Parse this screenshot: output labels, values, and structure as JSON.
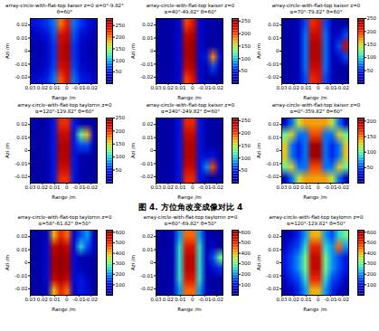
{
  "caption": "图 4. 方位角改变成像对比 4",
  "chart_data": [
    {
      "type": "heatmap",
      "title": "array-circle-with-flat-top kaiser z=0 α=0°-9.82° θ=60°",
      "x_label": "Range /m",
      "y_label": "Azi /m",
      "xlim": [
        0.03,
        -0.025
      ],
      "xticks": [
        0.03,
        0.02,
        0.01,
        0,
        -0.01,
        -0.02
      ],
      "ylim": [
        -0.025,
        0.025
      ],
      "yticks": [
        -0.02,
        -0.01,
        0,
        0.01,
        0.02
      ],
      "cells": [
        [
          40,
          50,
          60,
          80,
          200,
          230,
          80,
          60,
          40,
          30
        ],
        [
          20,
          30,
          40,
          70,
          240,
          250,
          70,
          40,
          30,
          20
        ],
        [
          15,
          20,
          30,
          60,
          250,
          260,
          60,
          30,
          20,
          15
        ],
        [
          15,
          20,
          30,
          60,
          250,
          260,
          60,
          30,
          20,
          15
        ],
        [
          20,
          25,
          35,
          65,
          240,
          250,
          65,
          35,
          25,
          20
        ],
        [
          30,
          40,
          50,
          80,
          210,
          240,
          80,
          50,
          40,
          30
        ]
      ],
      "colorbar": {
        "range": [
          0,
          280
        ],
        "ticks": [
          50,
          100,
          150,
          200,
          250
        ]
      }
    },
    {
      "type": "heatmap",
      "title": "array-circle-with-flat-top kaiser z=0 α=40°-49.82° θ=60°",
      "x_label": "Range /m",
      "y_label": "Azi /m",
      "xlim": [
        0.03,
        -0.025
      ],
      "xticks": [
        0.03,
        0.02,
        0.01,
        0,
        -0.01,
        -0.02
      ],
      "ylim": [
        -0.025,
        0.025
      ],
      "yticks": [
        -0.02,
        -0.01,
        0,
        0.01,
        0.02
      ],
      "cells": [
        [
          10,
          10,
          15,
          30,
          200,
          220,
          30,
          15,
          10,
          10
        ],
        [
          10,
          10,
          15,
          30,
          230,
          240,
          30,
          15,
          10,
          10
        ],
        [
          10,
          10,
          15,
          30,
          240,
          250,
          30,
          15,
          10,
          10
        ],
        [
          10,
          10,
          15,
          30,
          240,
          250,
          30,
          40,
          180,
          40
        ],
        [
          10,
          10,
          15,
          30,
          230,
          240,
          30,
          15,
          60,
          15
        ],
        [
          10,
          10,
          15,
          30,
          200,
          220,
          30,
          15,
          10,
          10
        ]
      ],
      "colorbar": {
        "range": [
          0,
          260
        ],
        "ticks": [
          50,
          100,
          150,
          200,
          250
        ]
      }
    },
    {
      "type": "heatmap",
      "title": "array-circle-with-flat-top kaiser z=0 α=70°-79.82° θ=60°",
      "x_label": "Range /m",
      "y_label": "Azi /m",
      "xlim": [
        0.03,
        -0.025
      ],
      "xticks": [
        0.03,
        0.02,
        0.01,
        0,
        -0.01,
        -0.02
      ],
      "ylim": [
        -0.025,
        0.025
      ],
      "yticks": [
        -0.02,
        -0.01,
        0,
        0.01,
        0.02
      ],
      "cells": [
        [
          10,
          10,
          20,
          60,
          200,
          210,
          60,
          20,
          10,
          10
        ],
        [
          10,
          10,
          20,
          70,
          220,
          220,
          70,
          20,
          30,
          60
        ],
        [
          10,
          10,
          20,
          70,
          230,
          230,
          70,
          20,
          60,
          220
        ],
        [
          10,
          10,
          20,
          70,
          230,
          230,
          70,
          20,
          30,
          60
        ],
        [
          10,
          10,
          20,
          70,
          220,
          220,
          70,
          20,
          10,
          10
        ],
        [
          10,
          10,
          20,
          60,
          200,
          210,
          60,
          20,
          10,
          10
        ]
      ],
      "colorbar": {
        "range": [
          0,
          250
        ],
        "ticks": [
          50,
          100,
          150,
          200,
          250
        ]
      }
    },
    {
      "type": "heatmap",
      "title": "array-circle-with-flat-top taylornn z=0 α=120°-129.82° θ=60°",
      "x_label": "Range /m",
      "y_label": "Azi /m",
      "xlim": [
        0.03,
        -0.025
      ],
      "xticks": [
        0.03,
        0.02,
        0.01,
        0,
        -0.01,
        -0.02
      ],
      "ylim": [
        -0.025,
        0.025
      ],
      "yticks": [
        -0.02,
        -0.01,
        0,
        0.01,
        0.02
      ],
      "cells": [
        [
          10,
          10,
          15,
          40,
          200,
          200,
          40,
          15,
          10,
          10
        ],
        [
          10,
          10,
          15,
          40,
          220,
          220,
          40,
          120,
          160,
          20
        ],
        [
          10,
          10,
          15,
          40,
          230,
          230,
          40,
          60,
          60,
          10
        ],
        [
          10,
          10,
          15,
          40,
          230,
          230,
          40,
          15,
          10,
          10
        ],
        [
          10,
          10,
          15,
          40,
          220,
          220,
          40,
          15,
          10,
          10
        ],
        [
          10,
          10,
          15,
          40,
          200,
          200,
          40,
          15,
          10,
          10
        ]
      ],
      "colorbar": {
        "range": [
          0,
          250
        ],
        "ticks": [
          50,
          100,
          150,
          200,
          250
        ]
      }
    },
    {
      "type": "heatmap",
      "title": "array-circle-with-flat-top kaiser z=0 α=240°-249.82° θ=60°",
      "x_label": "Range /m",
      "y_label": "Azi /m",
      "xlim": [
        0.03,
        -0.025
      ],
      "xticks": [
        0.03,
        0.02,
        0.01,
        0,
        -0.01,
        -0.02
      ],
      "ylim": [
        -0.025,
        0.025
      ],
      "yticks": [
        -0.02,
        -0.01,
        0,
        0.01,
        0.02
      ],
      "cells": [
        [
          10,
          10,
          15,
          40,
          210,
          210,
          40,
          15,
          10,
          10
        ],
        [
          10,
          10,
          15,
          40,
          230,
          230,
          40,
          15,
          10,
          10
        ],
        [
          10,
          10,
          15,
          40,
          240,
          240,
          40,
          15,
          10,
          10
        ],
        [
          10,
          10,
          15,
          40,
          240,
          240,
          40,
          30,
          40,
          10
        ],
        [
          10,
          10,
          15,
          40,
          230,
          230,
          40,
          80,
          200,
          30
        ],
        [
          10,
          10,
          15,
          40,
          210,
          210,
          40,
          15,
          10,
          10
        ]
      ],
      "colorbar": {
        "range": [
          0,
          260
        ],
        "ticks": [
          50,
          100,
          150,
          200,
          250
        ]
      }
    },
    {
      "type": "heatmap",
      "title": "array-circle-with-flat-top kaiser z=0 α=0°-359.82° θ=60°",
      "x_label": "Range /m",
      "y_label": "Azi /m",
      "xlim": [
        0.03,
        -0.025
      ],
      "xticks": [
        0.03,
        0.02,
        0.01,
        0,
        -0.01,
        -0.02
      ],
      "ylim": [
        -0.025,
        0.025
      ],
      "yticks": [
        -0.02,
        -0.01,
        0,
        0.01,
        0.02
      ],
      "cells": [
        [
          20,
          60,
          120,
          140,
          140,
          140,
          140,
          120,
          60,
          20
        ],
        [
          100,
          130,
          60,
          60,
          160,
          160,
          60,
          60,
          130,
          100
        ],
        [
          130,
          60,
          40,
          60,
          200,
          200,
          60,
          40,
          60,
          130
        ],
        [
          130,
          60,
          40,
          60,
          200,
          200,
          60,
          40,
          60,
          130
        ],
        [
          100,
          130,
          60,
          60,
          160,
          160,
          60,
          60,
          130,
          100
        ],
        [
          20,
          60,
          120,
          140,
          140,
          140,
          140,
          120,
          60,
          20
        ]
      ],
      "colorbar": {
        "range": [
          0,
          210
        ],
        "ticks": [
          50,
          100,
          150,
          200
        ]
      }
    },
    {
      "type": "heatmap",
      "title": "array-circle-with-flat-top taylornn z=0 α=58°-61.82° θ=50°",
      "x_label": "Range /m",
      "y_label": "Azi /m",
      "xlim": [
        0.03,
        -0.025
      ],
      "xticks": [
        0.03,
        0.02,
        0.01,
        0,
        -0.01,
        -0.02
      ],
      "ylim": [
        -0.025,
        0.025
      ],
      "yticks": [
        -0.02,
        -0.01,
        0,
        0.01,
        0.02
      ],
      "cells": [
        [
          20,
          30,
          60,
          400,
          500,
          450,
          60,
          150,
          200,
          40
        ],
        [
          20,
          30,
          80,
          550,
          580,
          550,
          80,
          250,
          150,
          60
        ],
        [
          20,
          30,
          80,
          580,
          600,
          580,
          80,
          40,
          30,
          20
        ],
        [
          20,
          30,
          80,
          580,
          600,
          580,
          80,
          40,
          30,
          20
        ],
        [
          20,
          30,
          80,
          550,
          580,
          550,
          80,
          100,
          60,
          20
        ],
        [
          20,
          30,
          60,
          400,
          500,
          450,
          60,
          100,
          80,
          20
        ]
      ],
      "colorbar": {
        "range": [
          0,
          620
        ],
        "ticks": [
          100,
          200,
          300,
          400,
          500,
          600
        ]
      }
    },
    {
      "type": "heatmap",
      "title": "array-circle-with-flat-top taylornn z=0 α=60°-69.82° θ=50°",
      "x_label": "Range /m",
      "y_label": "Azi /m",
      "xlim": [
        0.03,
        -0.025
      ],
      "xticks": [
        0.03,
        0.02,
        0.01,
        0,
        -0.01,
        -0.02
      ],
      "ylim": [
        -0.025,
        0.025
      ],
      "yticks": [
        -0.02,
        -0.01,
        0,
        0.01,
        0.02
      ],
      "cells": [
        [
          20,
          20,
          40,
          200,
          450,
          450,
          200,
          40,
          20,
          20
        ],
        [
          20,
          20,
          40,
          250,
          520,
          520,
          250,
          40,
          60,
          20
        ],
        [
          20,
          20,
          40,
          250,
          560,
          560,
          250,
          40,
          150,
          300
        ],
        [
          20,
          20,
          40,
          250,
          560,
          560,
          250,
          40,
          80,
          120
        ],
        [
          20,
          20,
          40,
          250,
          520,
          520,
          250,
          40,
          20,
          20
        ],
        [
          20,
          20,
          40,
          200,
          450,
          450,
          200,
          40,
          20,
          20
        ]
      ],
      "colorbar": {
        "range": [
          0,
          620
        ],
        "ticks": [
          100,
          200,
          300,
          400,
          500,
          600
        ]
      }
    },
    {
      "type": "heatmap",
      "title": "array-circle-with-flat-top taylornn z=0 α=120°-129.82° θ=50°",
      "x_label": "Range /m",
      "y_label": "Azi /m",
      "xlim": [
        0.03,
        -0.025
      ],
      "xticks": [
        0.03,
        0.02,
        0.01,
        0,
        -0.01,
        -0.02
      ],
      "ylim": [
        -0.025,
        0.025
      ],
      "yticks": [
        -0.02,
        -0.01,
        0,
        0.01,
        0.02
      ],
      "cells": [
        [
          30,
          60,
          120,
          200,
          400,
          400,
          200,
          150,
          250,
          300
        ],
        [
          60,
          120,
          150,
          250,
          500,
          500,
          250,
          200,
          450,
          200
        ],
        [
          100,
          150,
          200,
          300,
          550,
          550,
          300,
          200,
          150,
          100
        ],
        [
          100,
          150,
          200,
          300,
          550,
          550,
          300,
          200,
          150,
          100
        ],
        [
          60,
          120,
          150,
          250,
          500,
          500,
          250,
          150,
          120,
          60
        ],
        [
          30,
          60,
          120,
          200,
          400,
          400,
          200,
          120,
          60,
          30
        ]
      ],
      "colorbar": {
        "range": [
          0,
          620
        ],
        "ticks": [
          100,
          200,
          300,
          400,
          500,
          600
        ]
      }
    }
  ]
}
